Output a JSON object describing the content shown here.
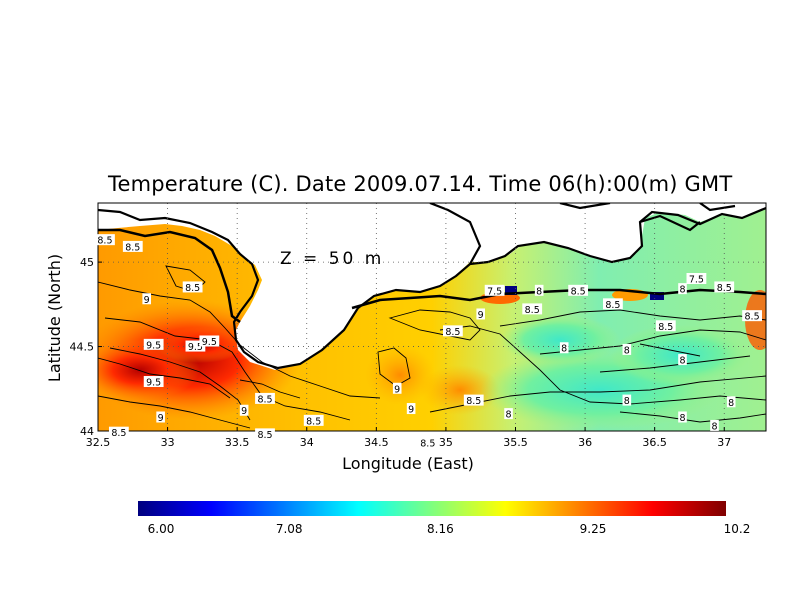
{
  "title": "Temperature (C). Date 2009.07.14. Time 06(h):00(m) GMT",
  "depth_label": "Z = 50 m",
  "axes": {
    "xlabel": "Longitude (East)",
    "ylabel": "Latitude (North)",
    "xlim": [
      32.5,
      37.3
    ],
    "ylim": [
      44.0,
      45.35
    ],
    "xticks": [
      32.5,
      33,
      33.5,
      34,
      34.5,
      35,
      35.5,
      36,
      36.5,
      37
    ],
    "xtick_labels": [
      "32.5",
      "33",
      "33.5",
      "34",
      "34.5",
      "35",
      "35.5",
      "36",
      "36.5",
      "37"
    ],
    "yticks": [
      44,
      44.5,
      45
    ],
    "ytick_labels": [
      "44",
      "44.5",
      "45"
    ],
    "grid": "dotted"
  },
  "colorbar": {
    "min": 6.0,
    "max": 10.2,
    "tick_values": [
      6.0,
      7.08,
      8.16,
      9.25,
      10.2
    ],
    "tick_labels": [
      "6.00",
      "7.08",
      "8.16",
      "9.25",
      "10.2"
    ],
    "palette": [
      "#00007f",
      "#0000ff",
      "#007fff",
      "#00ffff",
      "#7fff7f",
      "#ffff00",
      "#ff7f00",
      "#ff0000",
      "#7f0000"
    ]
  },
  "contour_labels": [
    {
      "text": "8.5",
      "lon": 32.55,
      "lat": 45.13
    },
    {
      "text": "8.5",
      "lon": 32.75,
      "lat": 45.09
    },
    {
      "text": "9",
      "lon": 32.85,
      "lat": 44.78
    },
    {
      "text": "8.5",
      "lon": 33.18,
      "lat": 44.85
    },
    {
      "text": "9.5",
      "lon": 32.9,
      "lat": 44.51
    },
    {
      "text": "9.5",
      "lon": 33.2,
      "lat": 44.5
    },
    {
      "text": "9.5",
      "lon": 33.3,
      "lat": 44.53
    },
    {
      "text": "9.5",
      "lon": 32.9,
      "lat": 44.29
    },
    {
      "text": "9",
      "lon": 32.95,
      "lat": 44.08
    },
    {
      "text": "9",
      "lon": 33.55,
      "lat": 44.12
    },
    {
      "text": "8.5",
      "lon": 33.7,
      "lat": 44.19
    },
    {
      "text": "8.5",
      "lon": 34.05,
      "lat": 44.06
    },
    {
      "text": "8.5",
      "lon": 33.7,
      "lat": 43.98
    },
    {
      "text": "9",
      "lon": 34.65,
      "lat": 44.25
    },
    {
      "text": "9",
      "lon": 34.75,
      "lat": 44.13
    },
    {
      "text": "8.5",
      "lon": 34.87,
      "lat": 43.93
    },
    {
      "text": "8.5",
      "lon": 35.2,
      "lat": 44.18
    },
    {
      "text": "8",
      "lon": 35.45,
      "lat": 44.1
    },
    {
      "text": "8.5",
      "lon": 35.05,
      "lat": 44.59
    },
    {
      "text": "9",
      "lon": 35.25,
      "lat": 44.69
    },
    {
      "text": "7.5",
      "lon": 35.35,
      "lat": 44.83
    },
    {
      "text": "8",
      "lon": 35.67,
      "lat": 44.83
    },
    {
      "text": "8.5",
      "lon": 35.62,
      "lat": 44.72
    },
    {
      "text": "8.5",
      "lon": 35.95,
      "lat": 44.83
    },
    {
      "text": "8.5",
      "lon": 36.2,
      "lat": 44.75
    },
    {
      "text": "8",
      "lon": 36.3,
      "lat": 44.48
    },
    {
      "text": "8.5",
      "lon": 36.58,
      "lat": 44.62
    },
    {
      "text": "7.5",
      "lon": 36.8,
      "lat": 44.9
    },
    {
      "text": "8",
      "lon": 36.7,
      "lat": 44.84
    },
    {
      "text": "8.5",
      "lon": 37.0,
      "lat": 44.85
    },
    {
      "text": "8.5",
      "lon": 37.2,
      "lat": 44.68
    },
    {
      "text": "8",
      "lon": 35.85,
      "lat": 44.49
    },
    {
      "text": "8",
      "lon": 36.3,
      "lat": 44.18
    },
    {
      "text": "8",
      "lon": 36.7,
      "lat": 44.42
    },
    {
      "text": "8",
      "lon": 36.7,
      "lat": 44.08
    },
    {
      "text": "8",
      "lon": 37.05,
      "lat": 44.17
    },
    {
      "text": "8",
      "lon": 36.93,
      "lat": 44.03
    },
    {
      "text": "8.5",
      "lon": 32.65,
      "lat": 43.99
    }
  ]
}
